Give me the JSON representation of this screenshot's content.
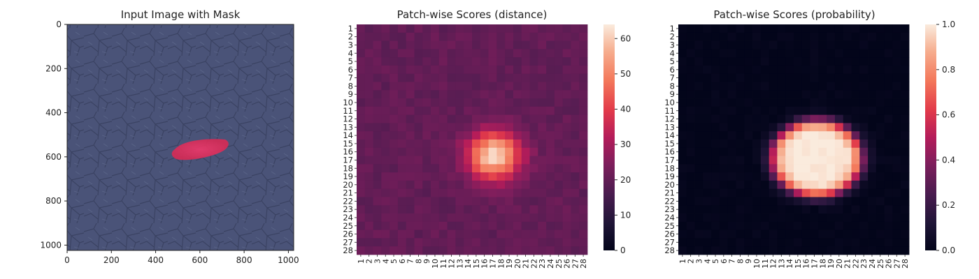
{
  "chart_data": [
    {
      "type": "image",
      "title": "Input Image with Mask",
      "xlim": [
        0,
        1024
      ],
      "ylim": [
        1024,
        0
      ],
      "x_ticks": [
        "0",
        "200",
        "400",
        "600",
        "800",
        "1000"
      ],
      "y_ticks": [
        "0",
        "200",
        "400",
        "600",
        "800",
        "1000"
      ],
      "background_color": "#4a5378",
      "mask_color": "#e8345c",
      "mask_region": {
        "x_range": [
          470,
          720
        ],
        "y_range": [
          520,
          610
        ]
      }
    },
    {
      "type": "heatmap",
      "title": "Patch-wise Scores (distance)",
      "rows": 28,
      "cols": 28,
      "row_labels": [
        "1",
        "2",
        "3",
        "4",
        "5",
        "6",
        "7",
        "8",
        "9",
        "10",
        "11",
        "12",
        "13",
        "14",
        "15",
        "16",
        "17",
        "18",
        "19",
        "20",
        "21",
        "22",
        "23",
        "24",
        "25",
        "26",
        "27",
        "28"
      ],
      "col_labels": [
        "1",
        "2",
        "3",
        "4",
        "5",
        "6",
        "7",
        "8",
        "9",
        "10",
        "11",
        "12",
        "13",
        "14",
        "15",
        "16",
        "17",
        "18",
        "19",
        "20",
        "21",
        "22",
        "23",
        "24",
        "25",
        "26",
        "27",
        "28"
      ],
      "colorbar": {
        "min": 0,
        "max": 64,
        "ticks": [
          "0",
          "10",
          "20",
          "30",
          "40",
          "50",
          "60"
        ],
        "colormap": "rocket"
      },
      "background_value": 20,
      "hotspot": {
        "center_row": 16.5,
        "center_col": 17.2,
        "radius_row": 3.6,
        "radius_col": 4.0,
        "peak": 63
      }
    },
    {
      "type": "heatmap",
      "title": "Patch-wise Scores (probability)",
      "rows": 28,
      "cols": 28,
      "row_labels": [
        "1",
        "2",
        "3",
        "4",
        "5",
        "6",
        "7",
        "8",
        "9",
        "10",
        "11",
        "12",
        "13",
        "14",
        "15",
        "16",
        "17",
        "18",
        "19",
        "20",
        "21",
        "22",
        "23",
        "24",
        "25",
        "26",
        "27",
        "28"
      ],
      "col_labels": [
        "1",
        "2",
        "3",
        "4",
        "5",
        "6",
        "7",
        "8",
        "9",
        "10",
        "11",
        "12",
        "13",
        "14",
        "15",
        "16",
        "17",
        "18",
        "19",
        "20",
        "21",
        "22",
        "23",
        "24",
        "25",
        "26",
        "27",
        "28"
      ],
      "colorbar": {
        "min": 0,
        "max": 1,
        "ticks": [
          "0.0",
          "0.2",
          "0.4",
          "0.6",
          "0.8",
          "1.0"
        ],
        "colormap": "rocket"
      },
      "background_value": 0.02,
      "hotspot": {
        "center_row": 16.8,
        "center_col": 17.3,
        "radius_row": 5.6,
        "radius_col": 6.6,
        "peak": 1.0
      }
    }
  ]
}
